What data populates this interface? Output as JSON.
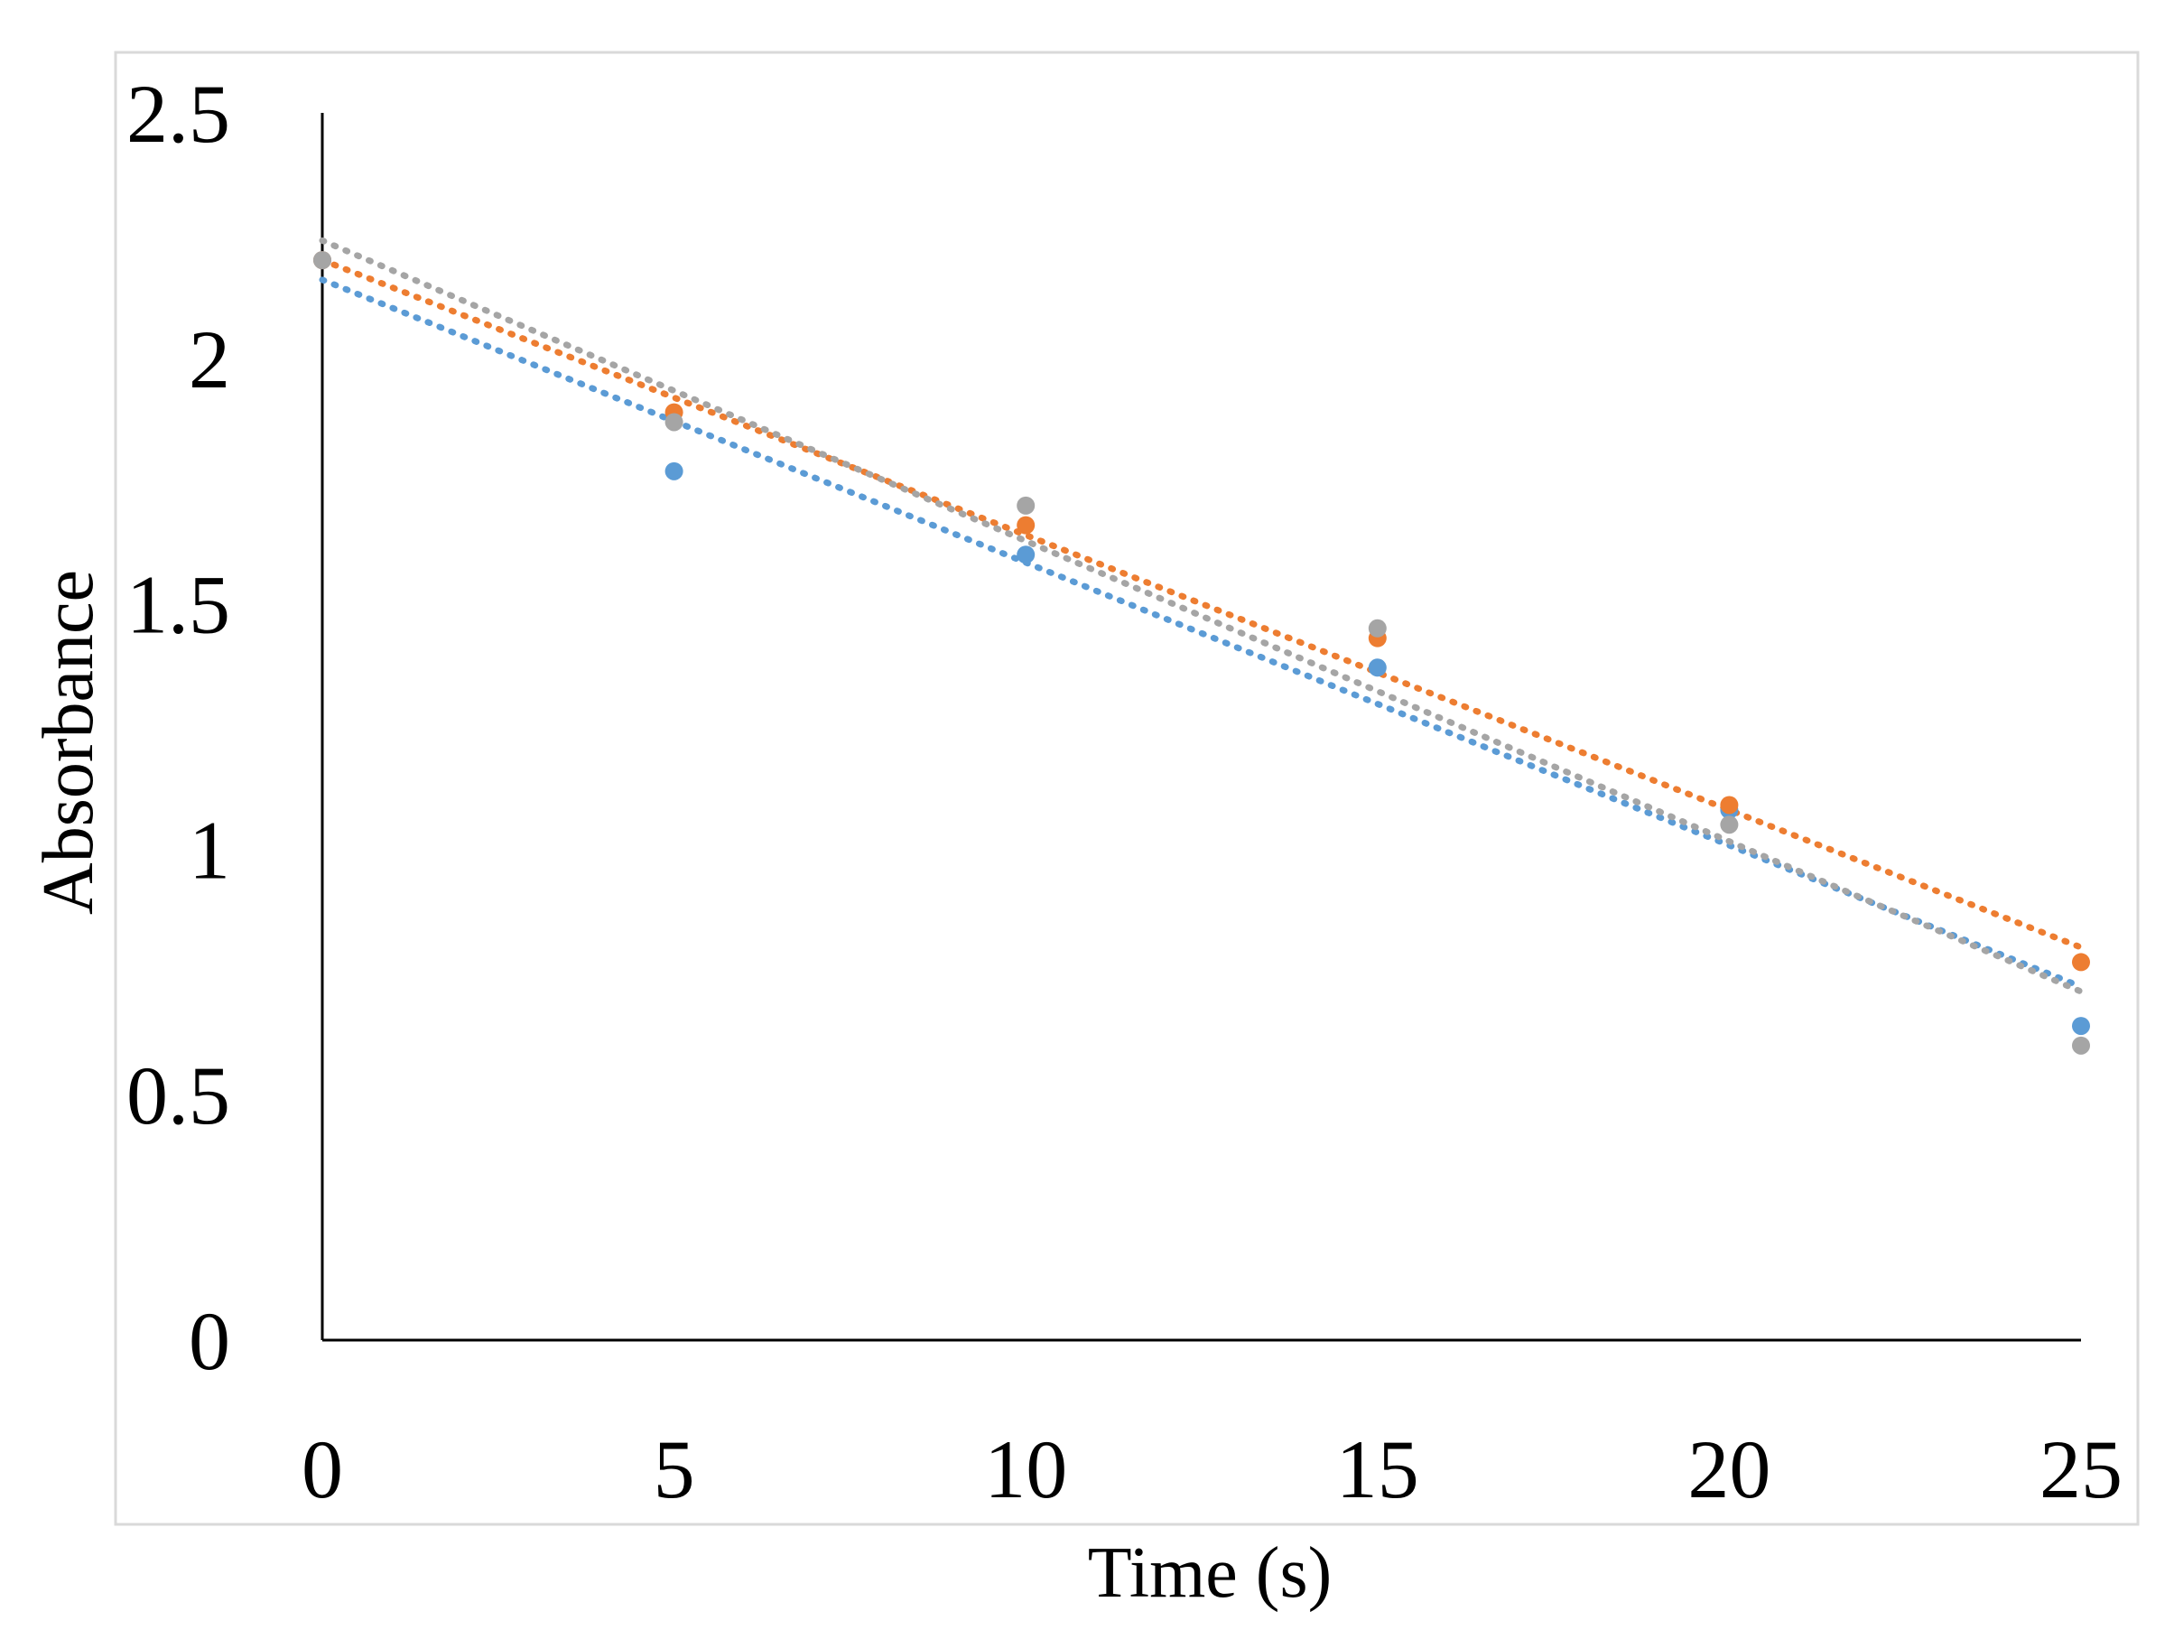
{
  "chart_data": {
    "type": "scatter",
    "title": "",
    "xlabel": "Time (s)",
    "ylabel": "Absorbance",
    "xlim": [
      0,
      25
    ],
    "ylim": [
      0,
      2.5
    ],
    "x_ticks": [
      0,
      5,
      10,
      15,
      20,
      25
    ],
    "x_tick_labels": [
      "0",
      "5",
      "10",
      "15",
      "20",
      "25"
    ],
    "y_ticks": [
      0,
      0.5,
      1,
      1.5,
      2,
      2.5
    ],
    "y_tick_labels": [
      "0",
      "0.5",
      "1",
      "1.5",
      "2",
      "2.5"
    ],
    "grid": false,
    "legend": "none",
    "series": [
      {
        "name": "series-blue",
        "color": "#5b9bd5",
        "x": [
          0,
          5,
          10,
          15,
          20,
          25
        ],
        "values": [
          2.2,
          1.77,
          1.6,
          1.37,
          1.08,
          0.64
        ],
        "trendline": {
          "style": "dotted",
          "y_start": 2.16,
          "y_end": 0.72
        }
      },
      {
        "name": "series-orange",
        "color": "#ed7d31",
        "x": [
          0,
          5,
          10,
          15,
          20,
          25
        ],
        "values": [
          2.2,
          1.89,
          1.66,
          1.43,
          1.09,
          0.77
        ],
        "trendline": {
          "style": "dotted",
          "y_start": 2.2,
          "y_end": 0.8
        }
      },
      {
        "name": "series-gray",
        "color": "#a5a5a5",
        "x": [
          0,
          5,
          10,
          15,
          20,
          25
        ],
        "values": [
          2.2,
          1.87,
          1.7,
          1.45,
          1.05,
          0.6
        ],
        "trendline": {
          "style": "dotted",
          "y_start": 2.24,
          "y_end": 0.71
        }
      }
    ]
  }
}
